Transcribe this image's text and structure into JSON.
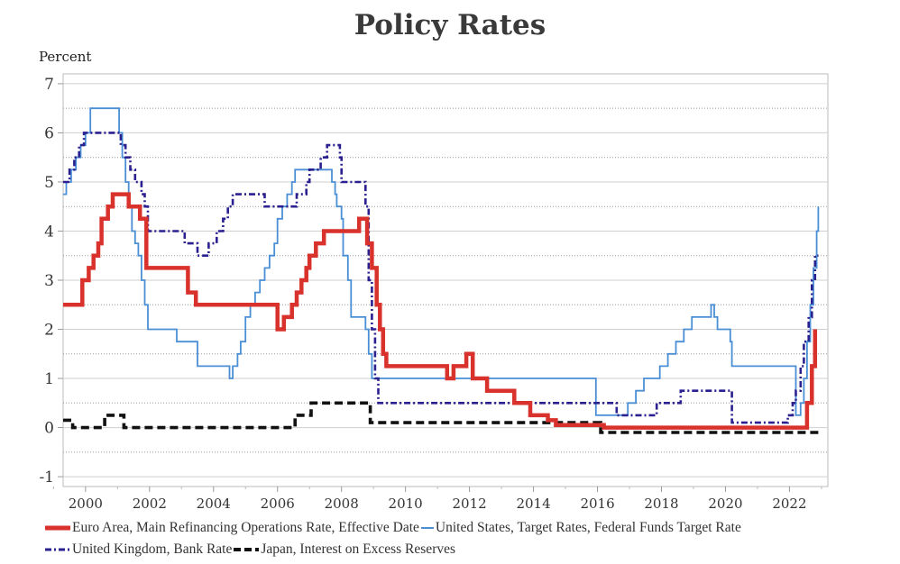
{
  "chart_data": {
    "type": "line",
    "title": "Policy Rates",
    "ylabel": "Percent",
    "xlabel": "",
    "xlim": [
      1999.3,
      2023.2
    ],
    "ylim": [
      -1.2,
      7.2
    ],
    "y_ticks": [
      -1,
      0,
      1,
      2,
      3,
      4,
      5,
      6,
      7
    ],
    "x_ticks": [
      2000,
      2002,
      2004,
      2006,
      2008,
      2010,
      2012,
      2014,
      2016,
      2018,
      2020,
      2022
    ],
    "y_minor_dotted": [
      -0.5,
      0.5,
      1.5,
      2.5,
      3.5,
      4.5,
      5.5,
      6.5
    ],
    "grid": true,
    "legend_position": "bottom",
    "series": [
      {
        "name": "Euro Area, Main Refinancing Operations Rate, Effective Date",
        "color": "#d9312b",
        "style": "thick-solid",
        "x": [
          1999.0,
          1999.35,
          1999.9,
          2000.1,
          2000.25,
          2000.4,
          2000.5,
          2000.7,
          2000.85,
          2001.0,
          2001.35,
          2001.7,
          2001.9,
          2002.9,
          2003.2,
          2003.45,
          2006.0,
          2006.2,
          2006.45,
          2006.6,
          2006.75,
          2006.9,
          2007.0,
          2007.2,
          2007.45,
          2008.55,
          2008.8,
          2008.95,
          2009.1,
          2009.2,
          2009.3,
          2009.4,
          2011.3,
          2011.5,
          2011.9,
          2012.1,
          2012.55,
          2013.4,
          2013.9,
          2014.45,
          2014.7,
          2015.0,
          2016.2,
          2022.55,
          2022.7,
          2022.8
        ],
        "y": [
          2.5,
          2.5,
          3.0,
          3.25,
          3.5,
          3.75,
          4.25,
          4.5,
          4.75,
          4.75,
          4.5,
          4.25,
          3.25,
          3.25,
          2.75,
          2.5,
          2.0,
          2.25,
          2.5,
          2.75,
          3.0,
          3.25,
          3.5,
          3.75,
          4.0,
          4.25,
          3.75,
          3.25,
          2.5,
          2.0,
          1.5,
          1.25,
          1.0,
          1.25,
          1.5,
          1.0,
          0.75,
          0.5,
          0.25,
          0.15,
          0.05,
          0.05,
          0.0,
          0.5,
          1.25,
          2.0
        ]
      },
      {
        "name": "United States, Target Rates, Federal Funds Target Rate",
        "color": "#4a8fd6",
        "style": "thin-solid",
        "x": [
          1999.0,
          1999.4,
          1999.55,
          1999.7,
          1999.85,
          2000.0,
          2000.15,
          2000.4,
          2001.05,
          2001.15,
          2001.25,
          2001.35,
          2001.45,
          2001.55,
          2001.65,
          2001.75,
          2001.85,
          2001.95,
          2002.85,
          2003.5,
          2004.5,
          2004.6,
          2004.75,
          2004.85,
          2005.0,
          2005.15,
          2005.3,
          2005.45,
          2005.6,
          2005.75,
          2005.9,
          2006.0,
          2006.15,
          2006.3,
          2006.45,
          2006.55,
          2007.7,
          2007.8,
          2007.85,
          2008.0,
          2008.05,
          2008.2,
          2008.3,
          2008.75,
          2008.85,
          2008.95,
          2015.95,
          2016.95,
          2017.2,
          2017.45,
          2017.95,
          2018.2,
          2018.45,
          2018.7,
          2018.95,
          2019.55,
          2019.65,
          2019.75,
          2020.15,
          2020.2,
          2022.2,
          2022.35,
          2022.45,
          2022.55,
          2022.65,
          2022.75,
          2022.85,
          2022.9
        ],
        "y": [
          4.75,
          5.0,
          5.25,
          5.5,
          5.75,
          6.0,
          6.5,
          6.5,
          6.0,
          5.5,
          5.0,
          4.5,
          4.0,
          3.75,
          3.5,
          3.0,
          2.5,
          2.0,
          1.75,
          1.25,
          1.0,
          1.25,
          1.5,
          1.75,
          2.25,
          2.5,
          2.75,
          3.0,
          3.25,
          3.5,
          3.75,
          4.25,
          4.5,
          4.75,
          5.0,
          5.25,
          5.0,
          4.75,
          4.5,
          4.25,
          3.5,
          3.0,
          2.25,
          2.0,
          1.5,
          1.0,
          0.25,
          0.5,
          0.75,
          1.0,
          1.25,
          1.5,
          1.75,
          2.0,
          2.25,
          2.5,
          2.25,
          2.0,
          1.75,
          1.25,
          0.25,
          0.5,
          1.0,
          1.75,
          2.5,
          3.25,
          4.0,
          4.5
        ]
      },
      {
        "name": "United Kingdom, Bank Rate",
        "color": "#2a2090",
        "style": "dash-dot",
        "x": [
          1999.0,
          1999.5,
          1999.65,
          1999.8,
          1999.95,
          2000.1,
          2001.1,
          2001.25,
          2001.4,
          2001.55,
          2001.75,
          2001.85,
          2001.95,
          2003.1,
          2003.5,
          2003.85,
          2004.1,
          2004.3,
          2004.45,
          2004.6,
          2005.6,
          2006.6,
          2006.9,
          2007.0,
          2007.35,
          2007.55,
          2007.95,
          2008.0,
          2008.75,
          2008.85,
          2008.95,
          2009.05,
          2009.15,
          2016.6,
          2017.85,
          2018.6,
          2020.2,
          2020.25,
          2021.95,
          2022.1,
          2022.2,
          2022.35,
          2022.45,
          2022.6,
          2022.7,
          2022.8,
          2022.9
        ],
        "y": [
          5.0,
          5.25,
          5.5,
          5.75,
          6.0,
          6.0,
          5.75,
          5.5,
          5.25,
          5.0,
          4.75,
          4.5,
          4.0,
          3.75,
          3.5,
          3.75,
          4.0,
          4.25,
          4.5,
          4.75,
          4.5,
          4.75,
          5.0,
          5.25,
          5.5,
          5.75,
          5.5,
          5.0,
          4.5,
          3.0,
          2.0,
          1.0,
          0.5,
          0.25,
          0.5,
          0.75,
          0.1,
          0.1,
          0.25,
          0.5,
          0.75,
          1.25,
          1.75,
          2.25,
          3.0,
          3.5,
          3.5
        ]
      },
      {
        "name": "Japan, Interest on Excess Reserves",
        "color": "#111111",
        "style": "thick-dashed",
        "x": [
          1999.0,
          1999.6,
          2000.6,
          2001.2,
          2006.55,
          2007.05,
          2008.9,
          2016.1,
          2022.9
        ],
        "y": [
          0.15,
          0.0,
          0.25,
          0.0,
          0.25,
          0.5,
          0.1,
          -0.1,
          -0.1
        ]
      }
    ]
  }
}
